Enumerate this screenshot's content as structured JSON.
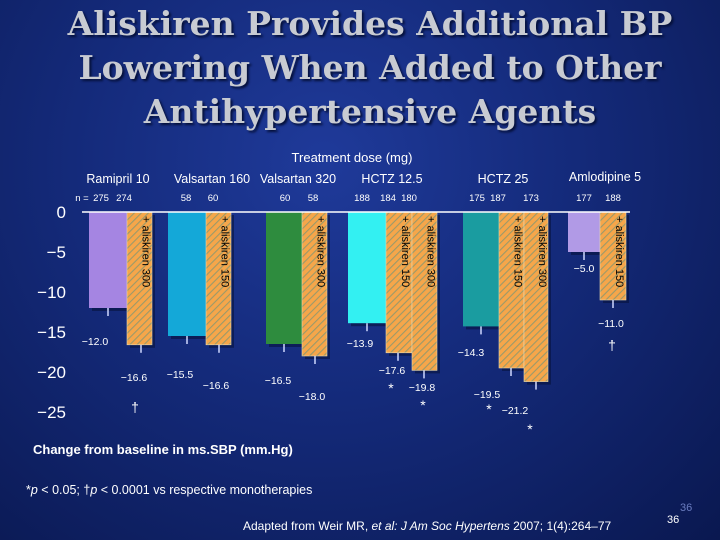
{
  "slide": {
    "title": "Aliskiren Provides Additional BP Lowering When Added to Other Antihypertensive Agents",
    "footnote_star": "*",
    "footnote_p": "p",
    "footnote_text": " < 0.05; ",
    "footnote_dagger": "†",
    "footnote_p2": "p",
    "footnote_text2": " < 0.0001 vs respective monotherapies",
    "source_prefix": "Adapted from Weir MR, ",
    "source_italic": "et al: J Am Soc Hypertens",
    "source_suffix": " 2007; 1(4):264–77",
    "page_number": "36"
  },
  "chart_data": {
    "type": "bar",
    "title": "Treatment dose (mg)",
    "ylabel": "Change from baseline in ms.SBP (mm.Hg)",
    "ylim": [
      -25,
      0
    ],
    "y_ticks": [
      0,
      -5,
      -10,
      -15,
      -20,
      -25
    ],
    "y_tick_labels": [
      "0",
      "−5",
      "−10",
      "−15",
      "−20",
      "−25"
    ],
    "n_label": "n =",
    "group_labels": [
      "Ramipril 10",
      "Valsartan 160",
      "Valsartan 320",
      "HCTZ 12.5",
      "HCTZ 25",
      "Amlodipine 5"
    ],
    "bars": [
      {
        "group": "Ramipril 10",
        "n": "275",
        "value": -12.0,
        "value_label": "−12.0",
        "type": "mono",
        "color": "#a585e2"
      },
      {
        "group": "Ramipril 10",
        "n": "274",
        "value": -16.6,
        "value_label": "−16.6",
        "type": "combo",
        "combo_label": "+ aliskiren 300",
        "color": "#f6a64a",
        "sig": "†"
      },
      {
        "group": "Valsartan 160",
        "n": "58",
        "value": -15.5,
        "value_label": "−15.5",
        "type": "mono",
        "color": "#14a8d8"
      },
      {
        "group": "Valsartan 160",
        "n": "60",
        "value": -16.6,
        "value_label": "−16.6",
        "type": "combo",
        "combo_label": "+ aliskiren 150",
        "color": "#f6a64a",
        "sig": ""
      },
      {
        "group": "Valsartan 320",
        "n": "60",
        "value": -16.5,
        "value_label": "−16.5",
        "type": "mono",
        "color": "#2e8c3e"
      },
      {
        "group": "Valsartan 320",
        "n": "58",
        "value": -18.0,
        "value_label": "−18.0",
        "type": "combo",
        "combo_label": "+ aliskiren 300",
        "color": "#f6a64a",
        "sig": ""
      },
      {
        "group": "HCTZ 12.5",
        "n": "188",
        "value": -13.9,
        "value_label": "−13.9",
        "type": "mono",
        "color": "#33f0f2"
      },
      {
        "group": "HCTZ 12.5",
        "n": "184",
        "value": -17.6,
        "value_label": "−17.6",
        "type": "combo",
        "combo_label": "+ aliskiren 150",
        "color": "#f6a64a",
        "sig": "*"
      },
      {
        "group": "HCTZ 12.5",
        "n": "180",
        "value": -19.8,
        "value_label": "−19.8",
        "type": "combo",
        "combo_label": "+ aliskiren 300",
        "color": "#f6a64a",
        "sig": "*"
      },
      {
        "group": "HCTZ 25",
        "n": "175",
        "value": -14.3,
        "value_label": "−14.3",
        "type": "mono",
        "color": "#1a9ca0"
      },
      {
        "group": "HCTZ 25",
        "n": "187",
        "value": -19.5,
        "value_label": "−19.5",
        "type": "combo",
        "combo_label": "+ aliskiren 150",
        "color": "#f6a64a",
        "sig": "*"
      },
      {
        "group": "HCTZ 25",
        "n": "173",
        "value": -21.2,
        "value_label": "−21.2",
        "type": "combo",
        "combo_label": "+ aliskiren 300",
        "color": "#f6a64a",
        "sig": "*"
      },
      {
        "group": "Amlodipine 5",
        "n": "177",
        "value": -5.0,
        "value_label": "−5.0",
        "type": "mono",
        "color": "#b19ae6"
      },
      {
        "group": "Amlodipine 5",
        "n": "188",
        "value": -11.0,
        "value_label": "−11.0",
        "type": "combo",
        "combo_label": "+ aliskiren 150",
        "color": "#f6a64a",
        "sig": "†"
      }
    ]
  }
}
